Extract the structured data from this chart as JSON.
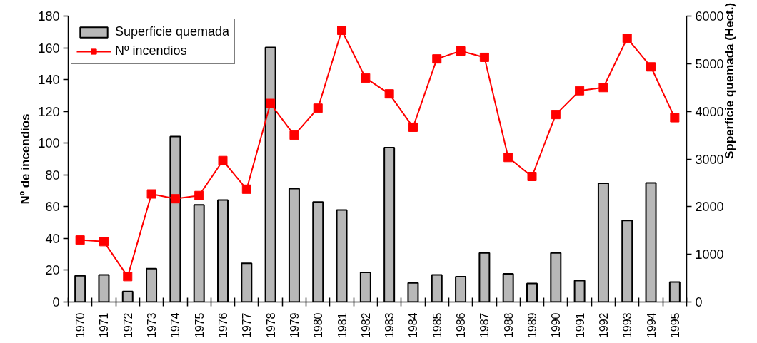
{
  "chart_data": {
    "type": "bar",
    "categories": [
      "1970",
      "1971",
      "1972",
      "1973",
      "1974",
      "1975",
      "1976",
      "1977",
      "1978",
      "1979",
      "1980",
      "1981",
      "1982",
      "1983",
      "1984",
      "1985",
      "1986",
      "1987",
      "1988",
      "1989",
      "1990",
      "1991",
      "1992",
      "1993",
      "1994",
      "1995"
    ],
    "ylabel": "Nº de incendios",
    "y2label": "Spperficie quemada (Hect.)",
    "ylim": [
      0,
      180
    ],
    "yticks": [
      0,
      20,
      40,
      60,
      80,
      100,
      120,
      140,
      160,
      180
    ],
    "y2lim": [
      0,
      6000
    ],
    "y2ticks": [
      0,
      1000,
      2000,
      3000,
      4000,
      5000,
      6000
    ],
    "series": [
      {
        "name": "Superficie quemada",
        "axis": "y2",
        "color": "#b8b8b8",
        "values": [
          550,
          570,
          220,
          700,
          3470,
          2040,
          2140,
          810,
          5340,
          2380,
          2100,
          1930,
          620,
          3240,
          400,
          570,
          530,
          1030,
          590,
          390,
          1030,
          450,
          2490,
          1710,
          2500,
          420
        ]
      },
      {
        "name": "Nº incendios",
        "type": "line",
        "axis": "y",
        "color": "#ff0000",
        "values": [
          39,
          38,
          16,
          68,
          65,
          67,
          89,
          71,
          125,
          105,
          122,
          171,
          141,
          131,
          110,
          153,
          158,
          154,
          91,
          79,
          118,
          133,
          135,
          166,
          148,
          116
        ]
      }
    ],
    "marker": "square",
    "legend": "top left",
    "grid": false
  }
}
